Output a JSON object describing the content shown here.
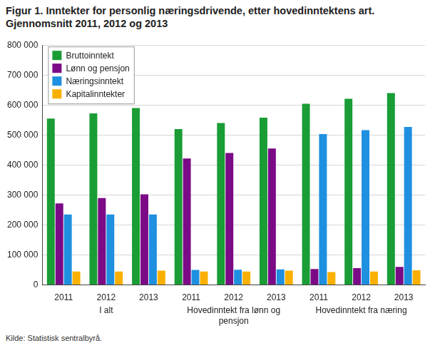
{
  "chart_data": {
    "type": "bar",
    "title": "Figur 1. Inntekter for personlig næringsdrivende, etter hovedinntektens art. Gjennomsnitt 2011, 2012 og 2013",
    "source": "Kilde: Statistisk sentralbyrå.",
    "categories": [
      "2011",
      "2012",
      "2013",
      "2011",
      "2012",
      "2013",
      "2011",
      "2012",
      "2013"
    ],
    "category_groups": [
      "I alt",
      "I alt",
      "I alt",
      "Hovedinntekt fra lønn og pensjon",
      "Hovedinntekt fra lønn og pensjon",
      "Hovedinntekt fra lønn og pensjon",
      "Hovedinntekt fra næring",
      "Hovedinntekt fra næring",
      "Hovedinntekt fra næring"
    ],
    "series": [
      {
        "name": "Bruttoinntekt",
        "color": "#1a9d35",
        "values": [
          555000,
          572000,
          590000,
          520000,
          540000,
          558000,
          604000,
          621000,
          640000
        ]
      },
      {
        "name": "Lønn og pensjon",
        "color": "#7b0a87",
        "values": [
          272000,
          290000,
          302000,
          422000,
          440000,
          455000,
          53000,
          56000,
          60000
        ]
      },
      {
        "name": "Næringsinntekt",
        "color": "#1f8fe0",
        "values": [
          235000,
          235000,
          235000,
          50000,
          51000,
          52000,
          503000,
          516000,
          527000
        ]
      },
      {
        "name": "Kapitalinntekter",
        "color": "#f9b000",
        "values": [
          45000,
          45000,
          48000,
          45000,
          45000,
          48000,
          43000,
          45000,
          49000
        ]
      }
    ],
    "ylim": [
      0,
      800000
    ],
    "yticks": [
      {
        "value": 0,
        "label": "0"
      },
      {
        "value": 100000,
        "label": "100 000"
      },
      {
        "value": 200000,
        "label": "200 000"
      },
      {
        "value": 300000,
        "label": "300 000"
      },
      {
        "value": 400000,
        "label": "400 000"
      },
      {
        "value": 500000,
        "label": "500 000"
      },
      {
        "value": 600000,
        "label": "600 000"
      },
      {
        "value": 700000,
        "label": "700 000"
      },
      {
        "value": 800000,
        "label": "800 000"
      }
    ],
    "grid": true,
    "legend": "upper left"
  }
}
